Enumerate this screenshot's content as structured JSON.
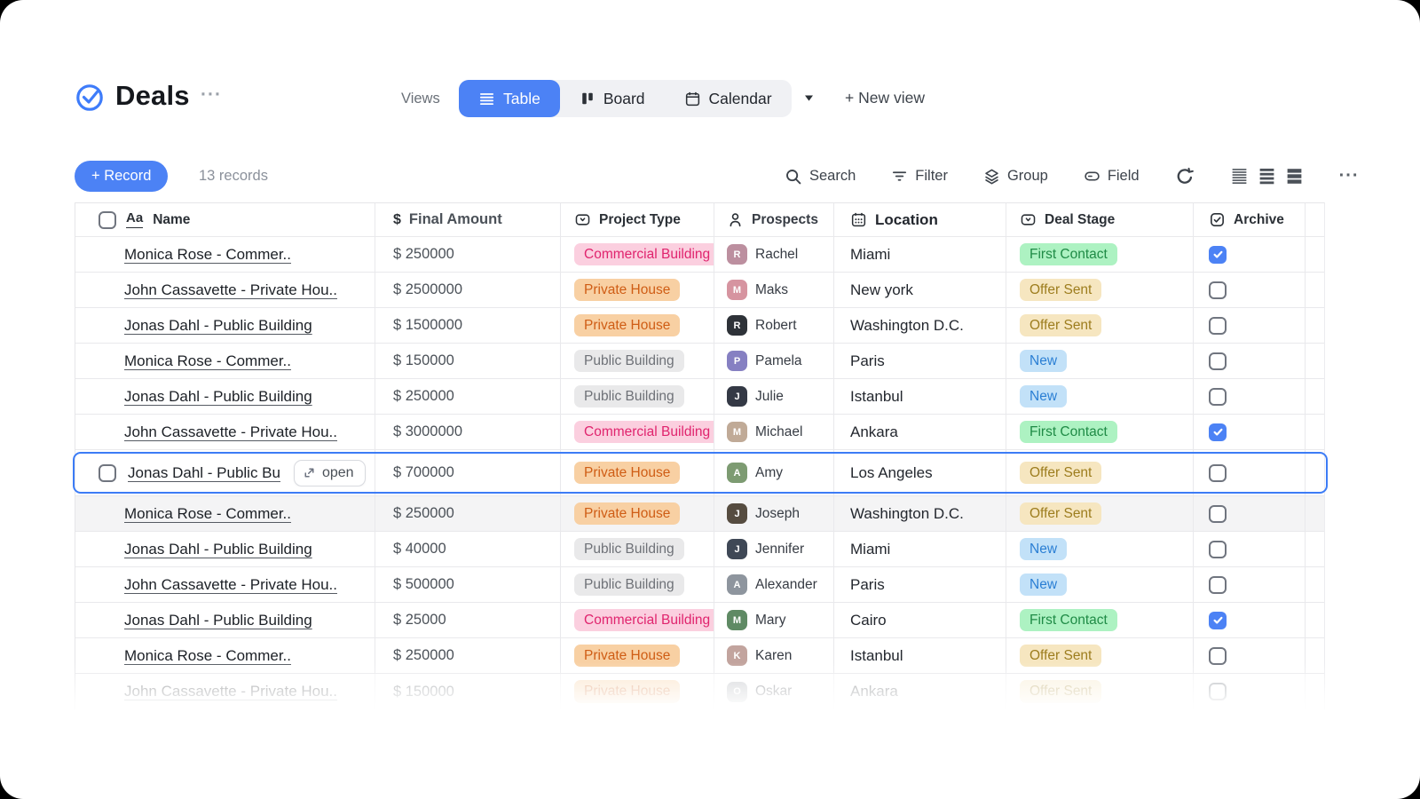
{
  "header": {
    "title": "Deals",
    "title_menu": "···",
    "views_label": "Views",
    "view_tabs": [
      {
        "label": "Table",
        "icon": "table-view-icon",
        "active": true
      },
      {
        "label": "Board",
        "icon": "board-view-icon",
        "active": false
      },
      {
        "label": "Calendar",
        "icon": "calendar-view-icon",
        "active": false
      }
    ],
    "new_view_label": "+ New view"
  },
  "toolbar": {
    "record_button_label": "+ Record",
    "records_count": "13 records",
    "actions": [
      {
        "label": "Search",
        "icon": "search-icon"
      },
      {
        "label": "Filter",
        "icon": "filter-icon"
      },
      {
        "label": "Group",
        "icon": "group-icon"
      },
      {
        "label": "Field",
        "icon": "field-icon"
      }
    ],
    "more_label": "···"
  },
  "table": {
    "columns": [
      {
        "label": "Name",
        "icon": "text-field-icon",
        "icon_text": "Aa"
      },
      {
        "label": "Final Amount",
        "icon": "dollar-icon",
        "icon_text": "$"
      },
      {
        "label": "Project Type",
        "icon": "select-field-icon"
      },
      {
        "label": "Prospects",
        "icon": "person-icon"
      },
      {
        "label": "Location",
        "icon": "calendar-dots-icon"
      },
      {
        "label": "Deal Stage",
        "icon": "select-field-icon"
      },
      {
        "label": "Archive",
        "icon": "checkbox-field-icon"
      }
    ],
    "open_button_label": "open",
    "selected_row_index": 6,
    "hovered_row_index": 7,
    "faded_row_index": 12,
    "rows": [
      {
        "name": "Monica Rose - Commer..",
        "amount": "$ 250000",
        "project_type": "Commercial Building",
        "prospect": "Rachel",
        "avatar_color": "#bc8f9f",
        "location": "Miami",
        "deal_stage": "First Contact",
        "archived": true
      },
      {
        "name": "John Cassavette - Private Hou..",
        "amount": "$ 2500000",
        "project_type": "Private House",
        "prospect": "Maks",
        "avatar_color": "#d694a0",
        "location": "New york",
        "deal_stage": "Offer Sent",
        "archived": false
      },
      {
        "name": "Jonas Dahl - Public Building",
        "amount": "$ 1500000",
        "project_type": "Private House",
        "prospect": "Robert",
        "avatar_color": "#2e3238",
        "location": "Washington D.C.",
        "deal_stage": "Offer Sent",
        "archived": false
      },
      {
        "name": "Monica Rose - Commer..",
        "amount": "$ 150000",
        "project_type": "Public Building",
        "prospect": "Pamela",
        "avatar_color": "#8680c2",
        "location": "Paris",
        "deal_stage": "New",
        "archived": false
      },
      {
        "name": "Jonas Dahl - Public Building",
        "amount": "$ 250000",
        "project_type": "Public Building",
        "prospect": "Julie",
        "avatar_color": "#343945",
        "location": "Istanbul",
        "deal_stage": "New",
        "archived": false
      },
      {
        "name": "John Cassavette - Private Hou..",
        "amount": "$ 3000000",
        "project_type": "Commercial Building",
        "prospect": "Michael",
        "avatar_color": "#c0aa97",
        "location": "Ankara",
        "deal_stage": "First Contact",
        "archived": true
      },
      {
        "name": "Jonas Dahl - Public Bu",
        "amount": "$ 700000",
        "project_type": "Private House",
        "prospect": "Amy",
        "avatar_color": "#7d9b72",
        "location": "Los Angeles",
        "deal_stage": "Offer Sent",
        "archived": false
      },
      {
        "name": "Monica Rose - Commer..",
        "amount": "$ 250000",
        "project_type": "Private House",
        "prospect": "Joseph",
        "avatar_color": "#564c40",
        "location": "Washington D.C.",
        "deal_stage": "Offer Sent",
        "archived": false
      },
      {
        "name": "Jonas Dahl - Public Building",
        "amount": "$ 40000",
        "project_type": "Public Building",
        "prospect": "Jennifer",
        "avatar_color": "#3f4856",
        "location": "Miami",
        "deal_stage": "New",
        "archived": false
      },
      {
        "name": "John Cassavette - Private Hou..",
        "amount": "$ 500000",
        "project_type": "Public Building",
        "prospect": "Alexander",
        "avatar_color": "#8e959e",
        "location": "Paris",
        "deal_stage": "New",
        "archived": false
      },
      {
        "name": "Jonas Dahl - Public Building",
        "amount": "$ 25000",
        "project_type": "Commercial Building",
        "prospect": "Mary",
        "avatar_color": "#5f8a64",
        "location": "Cairo",
        "deal_stage": "First Contact",
        "archived": true
      },
      {
        "name": "Monica Rose - Commer..",
        "amount": "$ 250000",
        "project_type": "Private House",
        "prospect": "Karen",
        "avatar_color": "#c2a49e",
        "location": "Istanbul",
        "deal_stage": "Offer Sent",
        "archived": false
      },
      {
        "name": "John Cassavette - Private Hou..",
        "amount": "$ 150000",
        "project_type": "Private House",
        "prospect": "Oskar",
        "avatar_color": "#a8adb3",
        "location": "Ankara",
        "deal_stage": "Offer Sent",
        "archived": false
      }
    ]
  },
  "badge_colors": {
    "Commercial Building": {
      "bg": "#fbcfdf",
      "text": "#e0246e"
    },
    "Private House": {
      "bg": "#f8d0a3",
      "text": "#cf5d15"
    },
    "Public Building": {
      "bg": "#e9e9ea",
      "text": "#6e7177"
    },
    "First Contact": {
      "bg": "#adf2c2",
      "text": "#1f8b46"
    },
    "Offer Sent": {
      "bg": "#f6e6c0",
      "text": "#9d7d1e"
    },
    "New": {
      "bg": "#c2e1f8",
      "text": "#2b7fd4"
    }
  },
  "accent": {
    "primary": "#4c82f5",
    "selected_border": "#3c7cf6",
    "logo": "#3e7cfa"
  }
}
